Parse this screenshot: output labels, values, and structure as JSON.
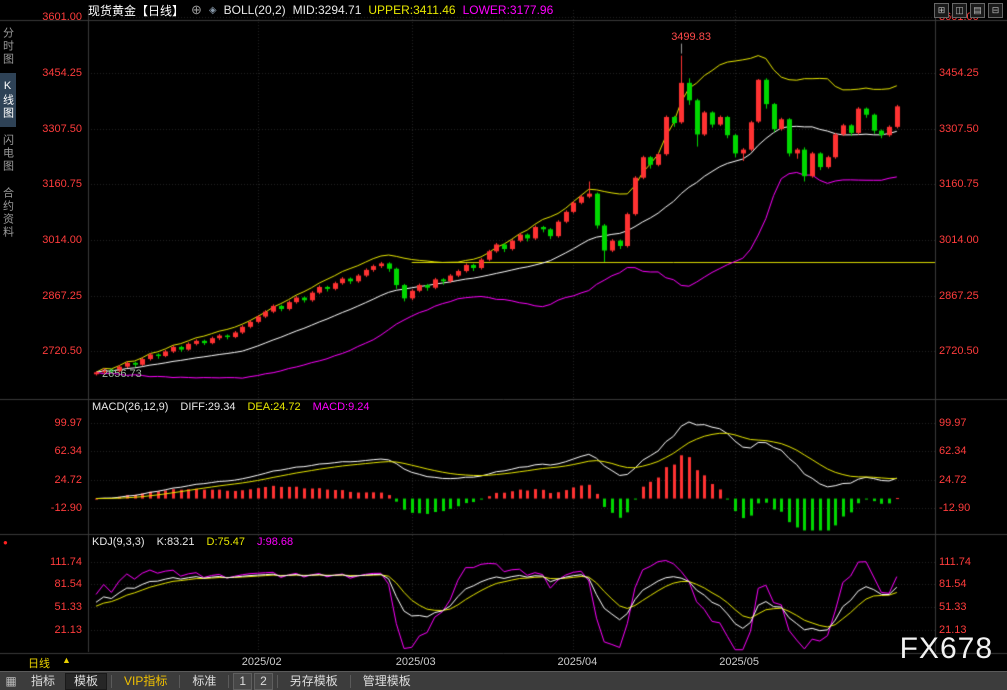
{
  "header": {
    "title": "现货黄金【日线】",
    "boll_label": "BOLL(20,2)",
    "boll_mid": "MID:3294.71",
    "boll_upper": "UPPER:3411.46",
    "boll_lower": "LOWER:3177.96"
  },
  "icons": {
    "expand": "⊕",
    "indicator": "◈",
    "period_arrow": "▲",
    "red_dot": "●",
    "toolbar_grid": "▦",
    "layouts": [
      "⊞",
      "◫",
      "▤",
      "⊟"
    ]
  },
  "sidebar": {
    "items": [
      {
        "key": "timeshare",
        "label": "分时图",
        "active": false
      },
      {
        "key": "kline",
        "label": "K线图",
        "active": true
      },
      {
        "key": "flash",
        "label": "闪电图",
        "active": false
      },
      {
        "key": "contract-info",
        "label": "合约资料",
        "active": false
      }
    ]
  },
  "panels": {
    "macd": {
      "name": "MACD(26,12,9)",
      "diff": "DIFF:29.34",
      "dea": "DEA:24.72",
      "macd": "MACD:9.24"
    },
    "kdj": {
      "name": "KDJ(9,3,3)",
      "k": "K:83.21",
      "d": "D:75.47",
      "j": "J:98.68"
    }
  },
  "footer": {
    "period_label": "日线",
    "watermark": "FX678",
    "toolbar": [
      {
        "key": "indicators",
        "label": "指标"
      },
      {
        "key": "templates",
        "label": "模板",
        "active": true,
        "sep": true
      },
      {
        "key": "vip-indicators",
        "label": "VIP指标",
        "vip": true,
        "sep": true
      },
      {
        "key": "standard",
        "label": "标准",
        "sep": true
      },
      {
        "key": "slot-1",
        "label": "1",
        "small": true
      },
      {
        "key": "slot-2",
        "label": "2",
        "small": true,
        "sep": true
      },
      {
        "key": "save-template",
        "label": "另存模板",
        "sep": true
      },
      {
        "key": "manage-template",
        "label": "管理模板"
      }
    ]
  },
  "colors": {
    "up": "#ff3232",
    "down": "#00d800",
    "boll_upper": "#e8e800",
    "boll_mid": "#ffffff",
    "boll_lower": "#ff00ff",
    "diff_line": "#ffffff",
    "dea_line": "#e8e800",
    "hist_pos": "#ff3232",
    "hist_neg": "#00d800",
    "k_line": "#ffffff",
    "d_line": "#e8e800",
    "j_line": "#ff00ff",
    "axis_text": "#ff3c3c",
    "month_text": "#cccccc",
    "grid": "#252525",
    "frame": "#3a3a3a",
    "hline": "#d8d800"
  },
  "chart_data": {
    "type": "candlestick",
    "symbol": "现货黄金",
    "period": "日线",
    "ohlc": [
      [
        2660,
        2668,
        2656.73,
        2665
      ],
      [
        2665,
        2676,
        2660,
        2672
      ],
      [
        2672,
        2675,
        2662,
        2668
      ],
      [
        2668,
        2684,
        2665,
        2680
      ],
      [
        2680,
        2694,
        2676,
        2690
      ],
      [
        2690,
        2693,
        2679,
        2685
      ],
      [
        2685,
        2704,
        2682,
        2700
      ],
      [
        2700,
        2716,
        2696,
        2712
      ],
      [
        2712,
        2715,
        2701,
        2708
      ],
      [
        2708,
        2724,
        2705,
        2720
      ],
      [
        2720,
        2736,
        2716,
        2732
      ],
      [
        2732,
        2735,
        2719,
        2725
      ],
      [
        2725,
        2744,
        2722,
        2740
      ],
      [
        2740,
        2752,
        2736,
        2748
      ],
      [
        2748,
        2751,
        2737,
        2742
      ],
      [
        2742,
        2759,
        2739,
        2755
      ],
      [
        2755,
        2766,
        2750,
        2762
      ],
      [
        2762,
        2765,
        2752,
        2758
      ],
      [
        2758,
        2774,
        2755,
        2770
      ],
      [
        2770,
        2789,
        2766,
        2785
      ],
      [
        2785,
        2802,
        2781,
        2798
      ],
      [
        2798,
        2816,
        2794,
        2812
      ],
      [
        2812,
        2829,
        2808,
        2825
      ],
      [
        2825,
        2844,
        2821,
        2840
      ],
      [
        2840,
        2843,
        2826,
        2832
      ],
      [
        2832,
        2854,
        2828,
        2850
      ],
      [
        2850,
        2866,
        2846,
        2862
      ],
      [
        2862,
        2865,
        2849,
        2855
      ],
      [
        2855,
        2879,
        2851,
        2875
      ],
      [
        2875,
        2894,
        2871,
        2890
      ],
      [
        2890,
        2893,
        2878,
        2885
      ],
      [
        2885,
        2904,
        2881,
        2900
      ],
      [
        2900,
        2916,
        2896,
        2912
      ],
      [
        2912,
        2915,
        2898,
        2905
      ],
      [
        2905,
        2924,
        2901,
        2920
      ],
      [
        2920,
        2939,
        2916,
        2935
      ],
      [
        2935,
        2949,
        2930,
        2945
      ],
      [
        2945,
        2956,
        2940,
        2952
      ],
      [
        2952,
        2955,
        2930,
        2938
      ],
      [
        2938,
        2941,
        2885,
        2895
      ],
      [
        2895,
        2898,
        2852,
        2860
      ],
      [
        2860,
        2884,
        2855,
        2880
      ],
      [
        2880,
        2899,
        2876,
        2895
      ],
      [
        2895,
        2898,
        2880,
        2888
      ],
      [
        2888,
        2914,
        2884,
        2910
      ],
      [
        2910,
        2913,
        2896,
        2905
      ],
      [
        2905,
        2924,
        2901,
        2920
      ],
      [
        2920,
        2936,
        2916,
        2932
      ],
      [
        2932,
        2952,
        2928,
        2948
      ],
      [
        2948,
        2951,
        2932,
        2940
      ],
      [
        2940,
        2966,
        2936,
        2962
      ],
      [
        2962,
        2988,
        2958,
        2984
      ],
      [
        2984,
        3006,
        2980,
        3002
      ],
      [
        3002,
        3005,
        2982,
        2990
      ],
      [
        2990,
        3016,
        2986,
        3012
      ],
      [
        3012,
        3032,
        3008,
        3028
      ],
      [
        3028,
        3031,
        3010,
        3018
      ],
      [
        3018,
        3052,
        3014,
        3048
      ],
      [
        3048,
        3051,
        3034,
        3042
      ],
      [
        3042,
        3045,
        3016,
        3024
      ],
      [
        3024,
        3066,
        3020,
        3062
      ],
      [
        3062,
        3092,
        3058,
        3088
      ],
      [
        3088,
        3116,
        3084,
        3112
      ],
      [
        3112,
        3132,
        3108,
        3128
      ],
      [
        3128,
        3168,
        3124,
        3136
      ],
      [
        3136,
        3139,
        3044,
        3052
      ],
      [
        3052,
        3056,
        2956,
        2986
      ],
      [
        2986,
        3016,
        2982,
        3012
      ],
      [
        3012,
        3015,
        2990,
        2998
      ],
      [
        2998,
        3086,
        2994,
        3082
      ],
      [
        3082,
        3182,
        3078,
        3178
      ],
      [
        3178,
        3236,
        3174,
        3232
      ],
      [
        3232,
        3235,
        3202,
        3212
      ],
      [
        3212,
        3244,
        3208,
        3240
      ],
      [
        3240,
        3342,
        3236,
        3338
      ],
      [
        3338,
        3341,
        3312,
        3322
      ],
      [
        3324,
        3499.83,
        3320,
        3428
      ],
      [
        3428,
        3440,
        3370,
        3382
      ],
      [
        3382,
        3386,
        3260,
        3292
      ],
      [
        3292,
        3354,
        3288,
        3350
      ],
      [
        3350,
        3353,
        3310,
        3318
      ],
      [
        3318,
        3342,
        3314,
        3338
      ],
      [
        3338,
        3341,
        3282,
        3290
      ],
      [
        3290,
        3293,
        3232,
        3242
      ],
      [
        3242,
        3256,
        3222,
        3252
      ],
      [
        3252,
        3328,
        3248,
        3324
      ],
      [
        3326,
        3438,
        3322,
        3436
      ],
      [
        3436,
        3440,
        3360,
        3372
      ],
      [
        3372,
        3375,
        3298,
        3306
      ],
      [
        3306,
        3336,
        3302,
        3332
      ],
      [
        3332,
        3335,
        3234,
        3242
      ],
      [
        3242,
        3256,
        3228,
        3252
      ],
      [
        3252,
        3258,
        3168,
        3182
      ],
      [
        3182,
        3246,
        3178,
        3242
      ],
      [
        3242,
        3245,
        3198,
        3206
      ],
      [
        3206,
        3236,
        3202,
        3232
      ],
      [
        3232,
        3296,
        3228,
        3292
      ],
      [
        3292,
        3320,
        3288,
        3316
      ],
      [
        3316,
        3319,
        3288,
        3296
      ],
      [
        3296,
        3364,
        3292,
        3360
      ],
      [
        3360,
        3363,
        3336,
        3344
      ],
      [
        3344,
        3347,
        3294,
        3302
      ],
      [
        3302,
        3305,
        3282,
        3290
      ],
      [
        3290,
        3316,
        3286,
        3312
      ],
      [
        3312,
        3370,
        3308,
        3366
      ]
    ],
    "month_marks": [
      {
        "label": "2025/02",
        "index": 21
      },
      {
        "label": "2025/03",
        "index": 41
      },
      {
        "label": "2025/04",
        "index": 62
      },
      {
        "label": "2025/05",
        "index": 83
      }
    ],
    "main_axis_ticks": [
      3601.0,
      3454.25,
      3307.5,
      3160.75,
      3014.0,
      2867.25,
      2720.5
    ],
    "macd_axis_ticks": [
      99.97,
      62.34,
      24.72,
      -12.9
    ],
    "kdj_axis_ticks": [
      111.74,
      81.54,
      51.33,
      21.13
    ],
    "annotations": [
      {
        "key": "high",
        "text": "3499.83",
        "index": 76,
        "price": 3499.83,
        "color": "#ff4a4a"
      },
      {
        "key": "low",
        "text": "2656.73",
        "index": 0,
        "price": 2656.73,
        "color": "#9fb39f"
      }
    ],
    "hline": {
      "price": 2956,
      "from_index": 41
    },
    "indicators": {
      "boll": {
        "period": 20,
        "mult": 2,
        "mid": 3294.71,
        "upper": 3411.46,
        "lower": 3177.96
      },
      "macd": {
        "fast": 12,
        "slow": 26,
        "signal": 9,
        "diff": 29.34,
        "dea": 24.72,
        "macd": 9.24
      },
      "kdj": {
        "n": 9,
        "m1": 3,
        "m2": 3,
        "k": 83.21,
        "d": 75.47,
        "j": 98.68
      }
    },
    "ylim_main": [
      2600,
      3620
    ],
    "ylim_macd": [
      -44,
      110
    ],
    "ylim_kdj": [
      -8,
      131
    ]
  }
}
